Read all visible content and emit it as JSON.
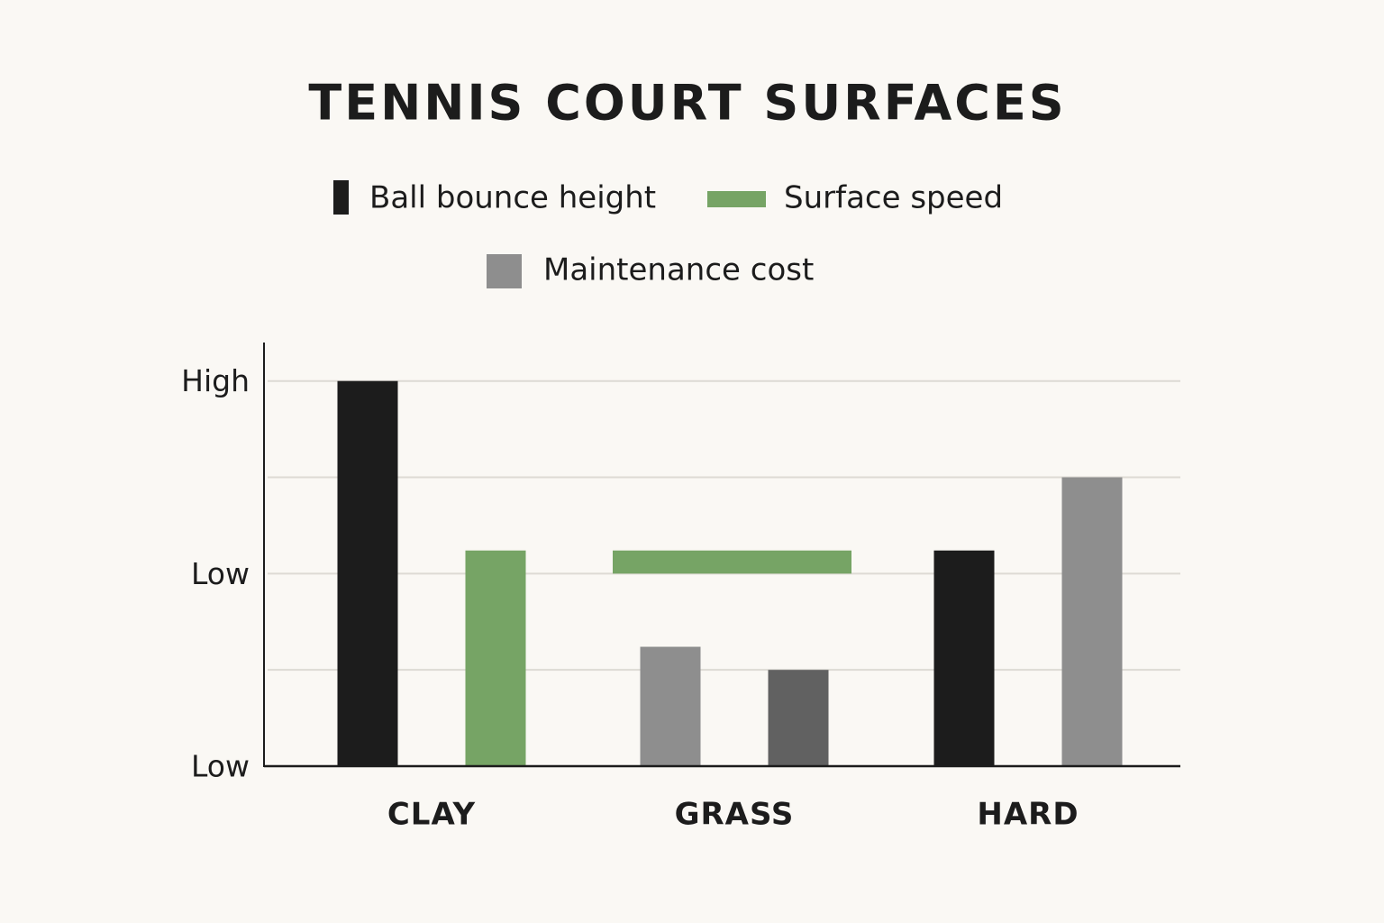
{
  "chart_data": {
    "type": "bar",
    "title": "TENNIS COURT SURFACES",
    "categories": [
      "CLAY",
      "GRASS",
      "HARD"
    ],
    "series": [
      {
        "name": "Ball bounce height",
        "color": "#1c1c1c",
        "values": [
          2,
          null,
          1.12
        ]
      },
      {
        "name": "Surface speed",
        "color": "#76a465",
        "values": [
          1.12,
          1.12,
          null
        ],
        "lows": [
          0,
          1,
          null
        ]
      },
      {
        "name": "Maintenance cost",
        "color": "#8e8e8e",
        "values": [
          null,
          0.62,
          1.5
        ]
      },
      {
        "color": "#616161",
        "values": [
          null,
          0.5,
          null
        ]
      }
    ],
    "ylim": [
      0,
      2.2
    ],
    "yticks": [
      {
        "value": 0,
        "label": "Low"
      },
      {
        "value": 1,
        "label": "Low"
      },
      {
        "value": 2,
        "label": "High"
      }
    ],
    "minor_yticks": [
      0.5,
      1.5
    ],
    "grid": true
  }
}
